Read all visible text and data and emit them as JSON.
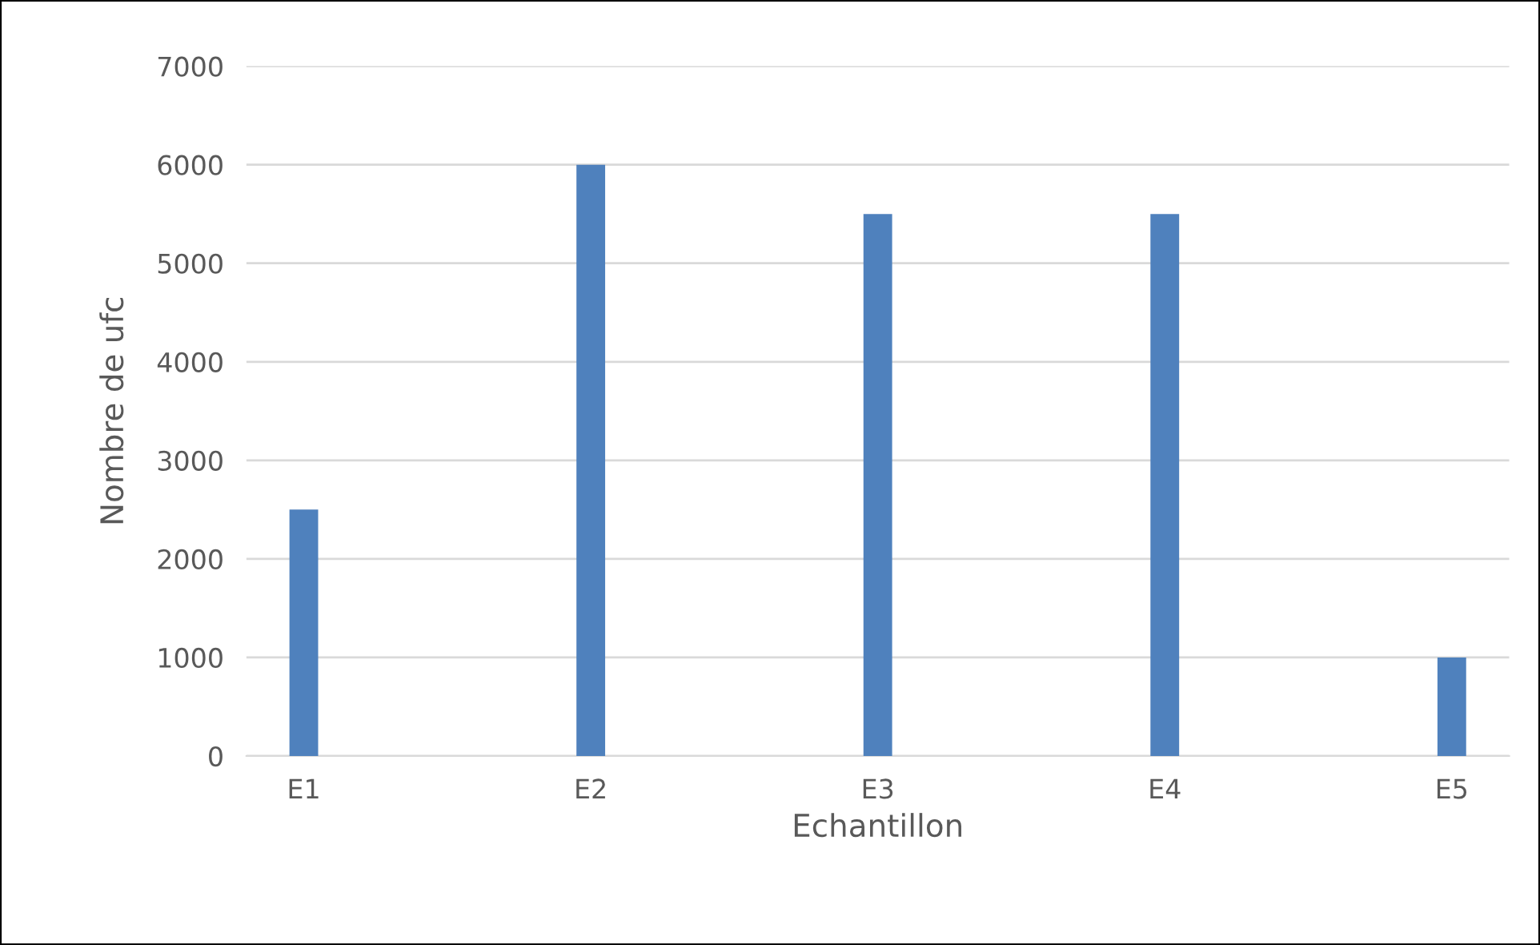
{
  "chart_data": {
    "type": "bar",
    "xlabel": "Echantillon",
    "ylabel": "Nombre de ufc",
    "categories": [
      "E1",
      "E2",
      "E3",
      "E4",
      "E5"
    ],
    "values": [
      2500,
      6000,
      5500,
      5500,
      1000
    ],
    "color": "#4f81bd",
    "ylim": [
      0,
      7000
    ],
    "yticks": [
      0,
      1000,
      2000,
      3000,
      4000,
      5000,
      6000,
      7000
    ],
    "grid": "y",
    "legend": false
  }
}
